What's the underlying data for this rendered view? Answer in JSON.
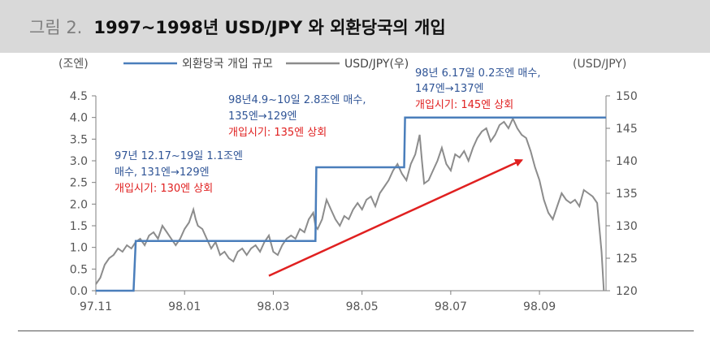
{
  "header": {
    "figure_number": "그림 2.",
    "title": "1997~1998년 USD/JPY 와 외환당국의 개입"
  },
  "chart_data": {
    "type": "line",
    "left_axis": {
      "unit_label": "(조엔)",
      "ylim": [
        0,
        4.5
      ],
      "ticks": [
        "0.0",
        "0.5",
        "1.0",
        "1.5",
        "2.0",
        "2.5",
        "3.0",
        "3.5",
        "4.0",
        "4.5"
      ]
    },
    "right_axis": {
      "unit_label": "(USD/JPY)",
      "ylim": [
        120,
        150
      ],
      "ticks": [
        "120",
        "125",
        "130",
        "135",
        "140",
        "145",
        "150"
      ]
    },
    "x_axis": {
      "tick_labels": [
        "97.11",
        "98.01",
        "98.03",
        "98.05",
        "98.07",
        "98.09"
      ]
    },
    "legend": [
      {
        "name": "외환당국 개입 규모",
        "color": "#4a7ebb"
      },
      {
        "name": "USD/JPY(우)",
        "color": "#8c8c8c"
      }
    ],
    "series": [
      {
        "name": "외환당국 개입 규모",
        "axis": "left",
        "points": [
          [
            0,
            0.0
          ],
          [
            0.85,
            0.0
          ],
          [
            0.9,
            1.15
          ],
          [
            4.95,
            1.15
          ],
          [
            4.97,
            2.85
          ],
          [
            6.95,
            2.85
          ],
          [
            6.97,
            4.0
          ],
          [
            11.5,
            4.0
          ]
        ]
      },
      {
        "name": "USD/JPY(우)",
        "axis": "right",
        "points": [
          [
            0,
            121.0
          ],
          [
            0.1,
            122.0
          ],
          [
            0.2,
            124.0
          ],
          [
            0.3,
            125.0
          ],
          [
            0.4,
            125.5
          ],
          [
            0.5,
            126.5
          ],
          [
            0.6,
            126.0
          ],
          [
            0.7,
            127.0
          ],
          [
            0.8,
            126.5
          ],
          [
            0.9,
            127.5
          ],
          [
            1.0,
            128.0
          ],
          [
            1.1,
            127.0
          ],
          [
            1.2,
            128.5
          ],
          [
            1.3,
            129.0
          ],
          [
            1.4,
            128.0
          ],
          [
            1.5,
            130.0
          ],
          [
            1.6,
            129.0
          ],
          [
            1.7,
            128.0
          ],
          [
            1.8,
            127.0
          ],
          [
            1.9,
            128.0
          ],
          [
            2.0,
            129.5
          ],
          [
            2.1,
            130.5
          ],
          [
            2.2,
            132.5
          ],
          [
            2.25,
            131.0
          ],
          [
            2.3,
            130.0
          ],
          [
            2.4,
            129.5
          ],
          [
            2.5,
            128.0
          ],
          [
            2.6,
            126.5
          ],
          [
            2.7,
            127.5
          ],
          [
            2.8,
            125.5
          ],
          [
            2.9,
            126.0
          ],
          [
            3.0,
            125.0
          ],
          [
            3.1,
            124.5
          ],
          [
            3.2,
            126.0
          ],
          [
            3.3,
            126.5
          ],
          [
            3.4,
            125.5
          ],
          [
            3.5,
            126.5
          ],
          [
            3.6,
            127.0
          ],
          [
            3.7,
            126.0
          ],
          [
            3.8,
            127.5
          ],
          [
            3.9,
            128.5
          ],
          [
            4.0,
            126.0
          ],
          [
            4.1,
            125.5
          ],
          [
            4.2,
            127.0
          ],
          [
            4.3,
            128.0
          ],
          [
            4.4,
            128.5
          ],
          [
            4.5,
            128.0
          ],
          [
            4.6,
            129.5
          ],
          [
            4.7,
            129.0
          ],
          [
            4.8,
            131.0
          ],
          [
            4.9,
            132.0
          ],
          [
            4.95,
            130.0
          ],
          [
            5.0,
            129.5
          ],
          [
            5.1,
            131.0
          ],
          [
            5.2,
            134.0
          ],
          [
            5.3,
            132.5
          ],
          [
            5.4,
            131.0
          ],
          [
            5.5,
            130.0
          ],
          [
            5.6,
            131.5
          ],
          [
            5.7,
            131.0
          ],
          [
            5.8,
            132.5
          ],
          [
            5.9,
            133.5
          ],
          [
            6.0,
            132.5
          ],
          [
            6.1,
            134.0
          ],
          [
            6.2,
            134.5
          ],
          [
            6.3,
            133.0
          ],
          [
            6.4,
            135.0
          ],
          [
            6.5,
            136.0
          ],
          [
            6.6,
            137.0
          ],
          [
            6.7,
            138.5
          ],
          [
            6.8,
            139.5
          ],
          [
            6.9,
            138.0
          ],
          [
            7.0,
            137.0
          ],
          [
            7.1,
            139.5
          ],
          [
            7.2,
            141.0
          ],
          [
            7.3,
            144.0
          ],
          [
            7.35,
            140.0
          ],
          [
            7.4,
            136.5
          ],
          [
            7.5,
            137.0
          ],
          [
            7.6,
            138.5
          ],
          [
            7.7,
            140.0
          ],
          [
            7.8,
            142.0
          ],
          [
            7.9,
            139.5
          ],
          [
            8.0,
            138.5
          ],
          [
            8.1,
            141.0
          ],
          [
            8.2,
            140.5
          ],
          [
            8.3,
            141.5
          ],
          [
            8.4,
            140.0
          ],
          [
            8.5,
            142.0
          ],
          [
            8.6,
            143.5
          ],
          [
            8.7,
            144.5
          ],
          [
            8.8,
            145.0
          ],
          [
            8.9,
            143.0
          ],
          [
            9.0,
            144.0
          ],
          [
            9.1,
            145.5
          ],
          [
            9.2,
            146.0
          ],
          [
            9.3,
            145.0
          ],
          [
            9.4,
            146.5
          ],
          [
            9.5,
            145.0
          ],
          [
            9.6,
            144.0
          ],
          [
            9.7,
            143.5
          ],
          [
            9.8,
            141.5
          ],
          [
            9.9,
            139.0
          ],
          [
            10.0,
            137.0
          ],
          [
            10.1,
            134.0
          ],
          [
            10.2,
            132.0
          ],
          [
            10.3,
            131.0
          ],
          [
            10.4,
            133.0
          ],
          [
            10.5,
            135.0
          ],
          [
            10.6,
            134.0
          ],
          [
            10.7,
            133.5
          ],
          [
            10.8,
            134.0
          ],
          [
            10.9,
            133.0
          ],
          [
            11.0,
            135.5
          ],
          [
            11.1,
            135.0
          ],
          [
            11.2,
            134.5
          ],
          [
            11.3,
            133.5
          ],
          [
            11.4,
            126.0
          ],
          [
            11.45,
            120.0
          ]
        ]
      }
    ],
    "annotations": [
      {
        "lines": [
          "97년 12.17~19일 1.1조엔",
          "매수, 131엔→129엔"
        ],
        "highlight": "개입시기: 130엔 상회"
      },
      {
        "lines": [
          "98년4.9~10일 2.8조엔 매수,",
          "135엔→129엔"
        ],
        "highlight": "개입시기: 135엔 상회"
      },
      {
        "lines": [
          "98년 6.17일 0.2조엔 매수,",
          "147엔→137엔"
        ],
        "highlight": "개입시기: 145엔 상회"
      }
    ],
    "trend_arrow": {
      "from": [
        3.9,
        122.3
      ],
      "to": [
        9.6,
        140.1
      ],
      "color": "#e02020"
    },
    "colors": {
      "annotation_text": "#2f5496",
      "highlight_text": "#e02020",
      "axis": "#7f7f7f"
    }
  }
}
